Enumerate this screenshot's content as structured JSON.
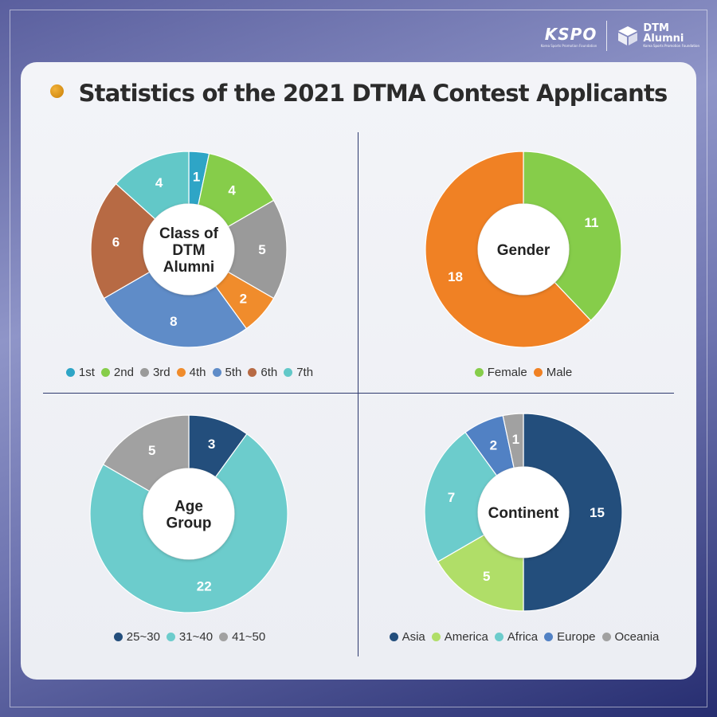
{
  "title": "Statistics of the 2021 DTMA Contest Applicants",
  "logos": {
    "kspo": "KSPO",
    "kspo_sub": "Korea Sports Promotion Foundation",
    "dtm_line1": "DTM",
    "dtm_line2": "Alumni",
    "dtm_sub": "Korea Sports Promotion Foundation"
  },
  "chart_data": [
    {
      "type": "pie",
      "title": "Class of DTM Alumni",
      "center_lines": [
        "Class of",
        "DTM",
        "Alumni"
      ],
      "categories": [
        "1st",
        "2nd",
        "3rd",
        "4th",
        "5th",
        "6th",
        "7th"
      ],
      "values": [
        1,
        4,
        5,
        2,
        8,
        6,
        4
      ],
      "colors": [
        "#2ea5c6",
        "#86cd4a",
        "#9a9a9a",
        "#f08c2c",
        "#5f8cc8",
        "#b76a44",
        "#62c8c8"
      ],
      "legend": "bottom"
    },
    {
      "type": "pie",
      "title": "Gender",
      "center_lines": [
        "Gender"
      ],
      "categories": [
        "Female",
        "Male"
      ],
      "values": [
        11,
        18
      ],
      "colors": [
        "#86cd4a",
        "#f08124"
      ],
      "legend": "bottom"
    },
    {
      "type": "pie",
      "title": "Age Group",
      "center_lines": [
        "Age",
        "Group"
      ],
      "categories": [
        "25~30",
        "31~40",
        "41~50"
      ],
      "values": [
        3,
        22,
        5
      ],
      "colors": [
        "#234e7c",
        "#6ccccc",
        "#a1a1a1"
      ],
      "legend": "bottom"
    },
    {
      "type": "pie",
      "title": "Continent",
      "center_lines": [
        "Continent"
      ],
      "categories": [
        "Asia",
        "America",
        "Africa",
        "Europe",
        "Oceania"
      ],
      "values": [
        15,
        5,
        7,
        2,
        1
      ],
      "colors": [
        "#234e7c",
        "#b0de68",
        "#6ccccc",
        "#5181c4",
        "#a1a1a1"
      ],
      "legend": "bottom"
    }
  ]
}
